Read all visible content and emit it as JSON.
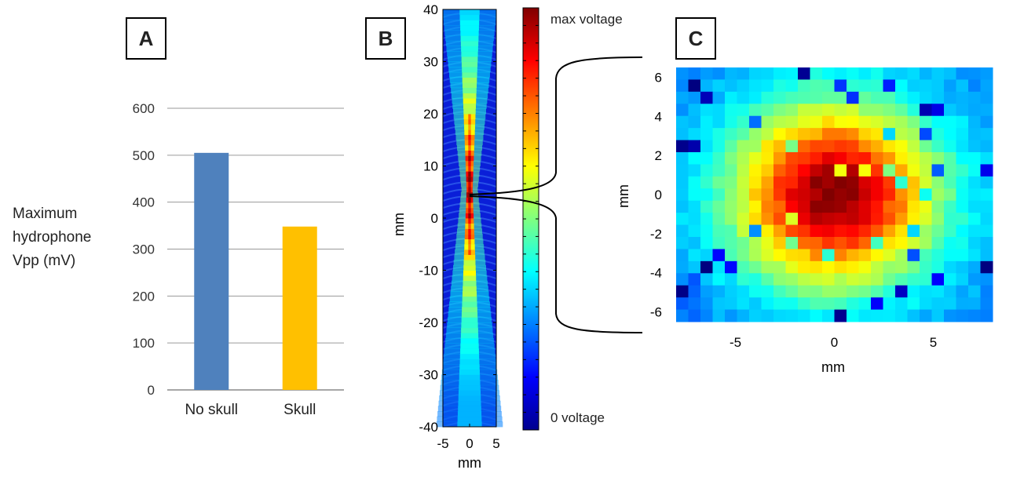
{
  "panels": {
    "a": "A",
    "b": "B",
    "c": "C"
  },
  "chart_data": [
    {
      "type": "bar",
      "categories": [
        "No skull",
        "Skull"
      ],
      "values": [
        505,
        348
      ],
      "ylim": [
        0,
        600
      ],
      "yticks": [
        0,
        100,
        200,
        300,
        400,
        500,
        600
      ],
      "ylabel_lines": [
        "Maximum",
        "hydrophone",
        "Vpp (mV)"
      ],
      "colors": [
        "#4F81BD",
        "#FFC000"
      ],
      "grid": true
    },
    {
      "type": "heatmap",
      "xlabel": "mm",
      "ylabel": "mm",
      "xlim": [
        -5,
        5
      ],
      "ylim": [
        -40,
        40
      ],
      "xticks": [
        -5,
        0,
        5
      ],
      "yticks": [
        -40,
        -30,
        -20,
        -10,
        0,
        10,
        20,
        30,
        40
      ],
      "colormap": "jet",
      "colorbar_max_label": "max voltage",
      "colorbar_min_label": "0 voltage"
    },
    {
      "type": "heatmap",
      "xlabel": "mm",
      "ylabel": "mm",
      "xlim": [
        -8,
        8
      ],
      "ylim": [
        -6.5,
        6.5
      ],
      "xticks": [
        -5,
        0,
        5
      ],
      "yticks": [
        6,
        4,
        2,
        0,
        -2,
        -4,
        -6
      ],
      "colormap": "jet",
      "grid_size": [
        26,
        21
      ]
    }
  ]
}
